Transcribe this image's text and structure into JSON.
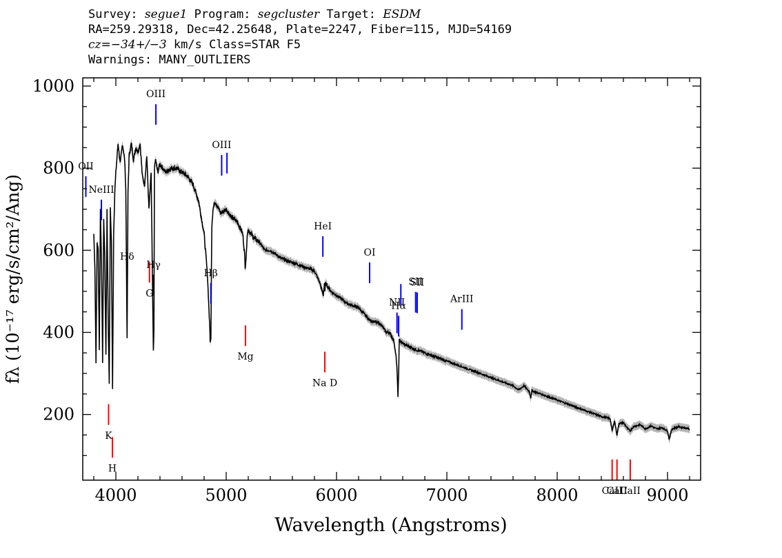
{
  "header": {
    "line1_a": "Survey: ",
    "survey": "segue1",
    "line1_b": " Program: ",
    "program": "segcluster",
    "line1_c": " Target: ",
    "target": "ESDM",
    "line2": "RA=259.29318, Dec=42.25648, Plate=2247, Fiber=115, MJD=54169",
    "line3_a": "cz=",
    "cz": "−34+/−3",
    "line3_b": " km/s Class=STAR F5",
    "line4": "Warnings: MANY_OUTLIERS"
  },
  "chart_data": {
    "type": "line",
    "xlabel": "Wavelength (Angstroms)",
    "ylabel": "fλ (10⁻¹⁷ erg/s/cm²/Ang)",
    "xlim": [
      3700,
      9300
    ],
    "ylim": [
      40,
      1020
    ],
    "x_ticks": [
      4000,
      5000,
      6000,
      7000,
      8000,
      9000
    ],
    "y_ticks": [
      200,
      400,
      600,
      800,
      1000
    ],
    "colors": {
      "spectrum": "#000000",
      "error_band": "#b4b4b4",
      "emission": "#0000ff",
      "absorption": "#ff0000"
    },
    "series": [
      {
        "x": [
          3800,
          3810,
          3820,
          3830,
          3840,
          3850,
          3860,
          3870,
          3880,
          3890,
          3900,
          3910,
          3920,
          3930,
          3940,
          3950,
          3960,
          3970,
          3980,
          3990,
          4000,
          4020,
          4040,
          4060,
          4080,
          4090,
          4102,
          4110,
          4120,
          4140,
          4160,
          4180,
          4200,
          4220,
          4240,
          4260,
          4280,
          4300,
          4320,
          4330,
          4340,
          4345,
          4350,
          4360,
          4380,
          4400,
          4450,
          4500,
          4550,
          4600,
          4650,
          4700,
          4750,
          4800,
          4830,
          4850,
          4855,
          4861,
          4866,
          4870,
          4880,
          4900,
          4950,
          5000,
          5050,
          5100,
          5150,
          5167,
          5172,
          5183,
          5190,
          5200,
          5250,
          5300,
          5350,
          5400,
          5500,
          5600,
          5700,
          5800,
          5850,
          5880,
          5890,
          5895,
          5900,
          5950,
          6000,
          6100,
          6200,
          6300,
          6400,
          6450,
          6480,
          6500,
          6520,
          6540,
          6550,
          6557,
          6563,
          6568,
          6575,
          6590,
          6620,
          6700,
          6800,
          6900,
          7000,
          7100,
          7200,
          7300,
          7400,
          7500,
          7600,
          7650,
          7700,
          7750,
          7760,
          7770,
          7800,
          7900,
          8000,
          8100,
          8200,
          8300,
          8400,
          8480,
          8498,
          8520,
          8542,
          8560,
          8600,
          8640,
          8662,
          8690,
          8750,
          8800,
          8850,
          8900,
          8950,
          9000,
          9015,
          9040,
          9100,
          9150,
          9200
        ],
        "y": [
          640,
          560,
          330,
          620,
          600,
          360,
          700,
          570,
          330,
          680,
          580,
          340,
          700,
          440,
          280,
          700,
          620,
          260,
          640,
          740,
          790,
          860,
          810,
          860,
          820,
          750,
          380,
          740,
          830,
          860,
          820,
          850,
          840,
          860,
          780,
          760,
          830,
          700,
          790,
          560,
          350,
          400,
          800,
          820,
          790,
          810,
          790,
          800,
          800,
          790,
          780,
          760,
          720,
          640,
          540,
          420,
          380,
          380,
          560,
          660,
          700,
          720,
          690,
          700,
          680,
          670,
          640,
          590,
          560,
          590,
          640,
          650,
          630,
          620,
          600,
          600,
          580,
          570,
          560,
          550,
          520,
          490,
          520,
          500,
          520,
          500,
          490,
          470,
          460,
          430,
          420,
          400,
          400,
          390,
          380,
          340,
          300,
          240,
          300,
          380,
          380,
          375,
          370,
          360,
          350,
          340,
          330,
          320,
          310,
          300,
          290,
          280,
          270,
          260,
          270,
          255,
          240,
          258,
          255,
          245,
          235,
          225,
          215,
          205,
          195,
          190,
          160,
          185,
          150,
          178,
          180,
          165,
          160,
          170,
          175,
          165,
          172,
          165,
          168,
          160,
          140,
          165,
          170,
          168,
          165
        ]
      }
    ],
    "lines": [
      {
        "label": "OII",
        "wavelength": 3728,
        "kind": "emission"
      },
      {
        "label": "NeIII",
        "wavelength": 3869,
        "kind": "emission"
      },
      {
        "label": "K",
        "wavelength": 3934,
        "kind": "absorption"
      },
      {
        "label": "H",
        "wavelength": 3969,
        "kind": "absorption"
      },
      {
        "label": "Hδ",
        "wavelength": 4102,
        "kind": "balmer"
      },
      {
        "label": "G",
        "wavelength": 4305,
        "kind": "absorption"
      },
      {
        "label": "Hγ",
        "wavelength": 4341,
        "kind": "balmer"
      },
      {
        "label": "OIII",
        "wavelength": 4363,
        "kind": "emission"
      },
      {
        "label": "Hβ",
        "wavelength": 4861,
        "kind": "emission"
      },
      {
        "label": "OIII",
        "wavelength": 4959,
        "kind": "emission"
      },
      {
        "label": "OIII",
        "wavelength": 5007,
        "kind": "emission"
      },
      {
        "label": "Mg",
        "wavelength": 5175,
        "kind": "absorption"
      },
      {
        "label": "HeI",
        "wavelength": 5876,
        "kind": "emission"
      },
      {
        "label": "Na D",
        "wavelength": 5894,
        "kind": "absorption"
      },
      {
        "label": "OI",
        "wavelength": 6300,
        "kind": "emission"
      },
      {
        "label": "NII",
        "wavelength": 6548,
        "kind": "emission"
      },
      {
        "label": "Hα",
        "wavelength": 6563,
        "kind": "emission"
      },
      {
        "label": "NII",
        "wavelength": 6583,
        "kind": "emission"
      },
      {
        "label": "SII",
        "wavelength": 6717,
        "kind": "emission"
      },
      {
        "label": "SII",
        "wavelength": 6731,
        "kind": "emission"
      },
      {
        "label": "ArIII",
        "wavelength": 7136,
        "kind": "emission"
      },
      {
        "label": "CaII",
        "wavelength": 8498,
        "kind": "absorption"
      },
      {
        "label": "CaII",
        "wavelength": 8542,
        "kind": "absorption"
      },
      {
        "label": "CaII",
        "wavelength": 8662,
        "kind": "absorption"
      }
    ]
  }
}
